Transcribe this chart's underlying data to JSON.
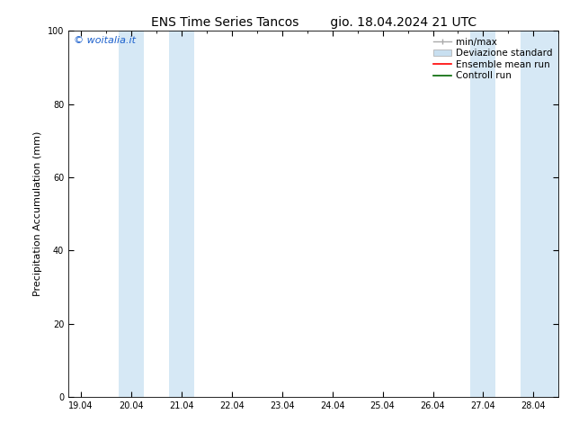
{
  "title_left": "ENS Time Series Tancos",
  "title_right": "gio. 18.04.2024 21 UTC",
  "ylabel": "Precipitation Accumulation (mm)",
  "watermark": "© woitalia.it",
  "watermark_color": "#1a5fcc",
  "ylim": [
    0,
    100
  ],
  "yticks": [
    0,
    20,
    40,
    60,
    80,
    100
  ],
  "xtick_labels": [
    "19.04",
    "20.04",
    "21.04",
    "22.04",
    "23.04",
    "24.04",
    "25.04",
    "26.04",
    "27.04",
    "28.04"
  ],
  "xtick_positions": [
    0,
    1,
    2,
    3,
    4,
    5,
    6,
    7,
    8,
    9
  ],
  "x_min": -0.25,
  "x_max": 9.5,
  "shaded_bands": [
    [
      0.75,
      1.25
    ],
    [
      1.75,
      2.25
    ],
    [
      7.75,
      8.25
    ],
    [
      8.75,
      9.5
    ]
  ],
  "band_color": "#d6e8f5",
  "background_color": "#ffffff",
  "legend_minmax_color": "#aaaaaa",
  "legend_std_color": "#c8dff0",
  "legend_ens_color": "#ff0000",
  "legend_ctrl_color": "#006600",
  "font_size_title": 10,
  "font_size_labels": 8,
  "font_size_ticks": 7,
  "font_size_legend": 7.5,
  "font_size_watermark": 8
}
